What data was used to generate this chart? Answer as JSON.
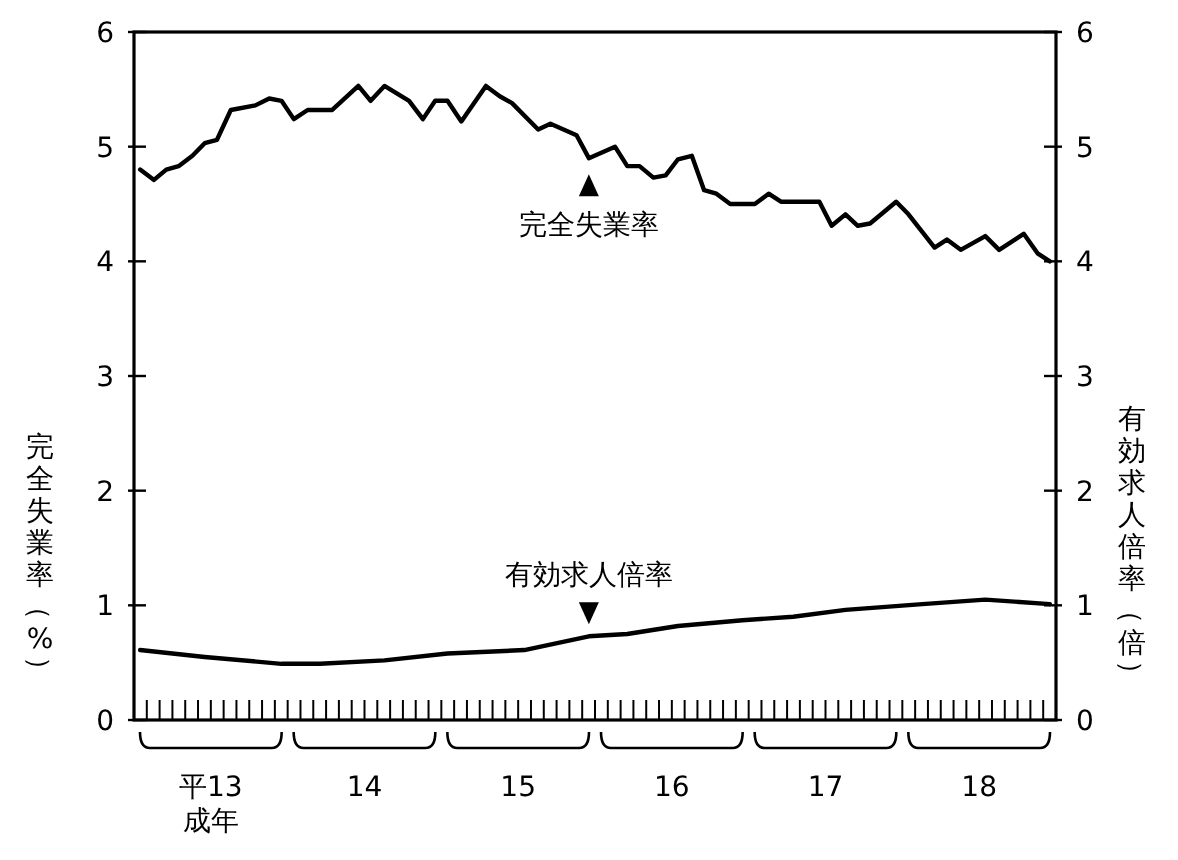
{
  "chart_data": {
    "type": "line",
    "ylabel": "完全失業率（%）",
    "y2label": "有効求人倍率（倍）",
    "xlim": [
      12.5,
      18.5
    ],
    "xticks": [
      {
        "value": 13,
        "label": "平13\n成年"
      },
      14,
      15,
      16,
      17,
      18
    ],
    "ylim": [
      0,
      6
    ],
    "yticks": [
      0,
      1,
      2,
      3,
      4,
      5,
      6
    ],
    "y2lim": [
      0,
      6
    ],
    "y2ticks": [
      0,
      1,
      2,
      3,
      4,
      5,
      6
    ],
    "grid": false,
    "marker": "none",
    "line_style": "solid",
    "series": [
      {
        "color": "#000000",
        "x": [
          12.54,
          12.63,
          12.71,
          12.79,
          12.88,
          12.96,
          13.04,
          13.13,
          13.29,
          13.38,
          13.46,
          13.54,
          13.63,
          13.79,
          13.96,
          14.04,
          14.13,
          14.29,
          14.38,
          14.46,
          14.54,
          14.63,
          14.79,
          14.88,
          14.96,
          15.13,
          15.21,
          15.38,
          15.46,
          15.63,
          15.71,
          15.79,
          15.88,
          15.96,
          16.04,
          16.13,
          16.21,
          16.29,
          16.38,
          16.54,
          16.63,
          16.71,
          16.96,
          17.04,
          17.13,
          17.21,
          17.29,
          17.46,
          17.54,
          17.71,
          17.79,
          17.88,
          18.04,
          18.13,
          18.29,
          18.38,
          18.46
        ],
        "values": [
          4.8,
          4.71,
          4.8,
          4.83,
          4.92,
          5.03,
          5.06,
          5.32,
          5.36,
          5.42,
          5.4,
          5.24,
          5.32,
          5.32,
          5.53,
          5.4,
          5.53,
          5.4,
          5.24,
          5.4,
          5.4,
          5.22,
          5.53,
          5.44,
          5.38,
          5.15,
          5.2,
          5.1,
          4.9,
          5.0,
          4.83,
          4.83,
          4.73,
          4.75,
          4.89,
          4.92,
          4.62,
          4.59,
          4.5,
          4.5,
          4.59,
          4.52,
          4.52,
          4.31,
          4.41,
          4.31,
          4.33,
          4.52,
          4.41,
          4.12,
          4.19,
          4.1,
          4.22,
          4.1,
          4.24,
          4.07,
          4.0
        ]
      },
      {
        "color": "#000000",
        "axis": "y2",
        "x": [
          12.54,
          12.96,
          13.46,
          13.71,
          14.13,
          14.54,
          15.04,
          15.46,
          15.71,
          16.04,
          16.46,
          16.79,
          17.13,
          17.63,
          18.04,
          18.46
        ],
        "values": [
          0.61,
          0.55,
          0.49,
          0.49,
          0.52,
          0.58,
          0.61,
          0.73,
          0.75,
          0.82,
          0.87,
          0.9,
          0.96,
          1.01,
          1.05,
          1.01
        ]
      }
    ],
    "annotations": [
      {
        "text": "完全失業率",
        "x": 15.46,
        "y": 4.9
      },
      {
        "text": "有効求人倍率",
        "x": 15.46,
        "y": 0.73
      }
    ]
  }
}
